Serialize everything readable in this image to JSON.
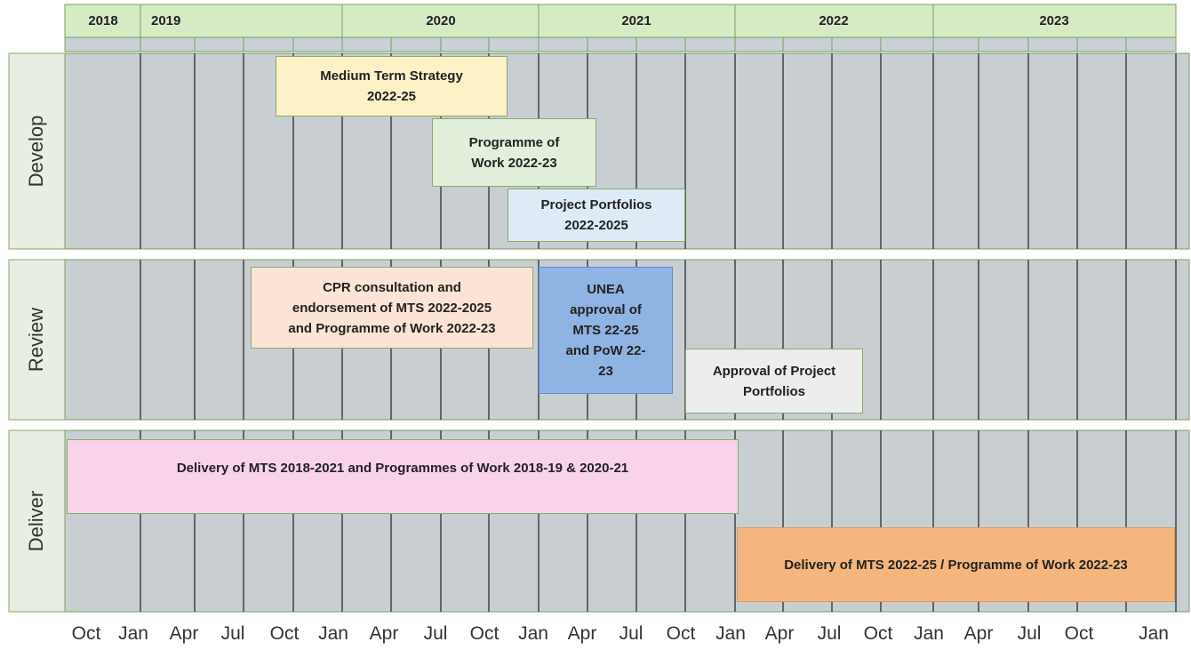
{
  "years": [
    "2018",
    "2019",
    "2020",
    "2021",
    "2022",
    "2023"
  ],
  "months": [
    "Oct",
    "Jan",
    "Apr",
    "Jul",
    "Oct",
    "Jan",
    "Apr",
    "Jul",
    "Oct",
    "Jan",
    "Apr",
    "Jul",
    "Oct",
    "Jan",
    "Apr",
    "Jul",
    "Oct",
    "Jan",
    "Apr",
    "Jul",
    "Oct",
    "Jan"
  ],
  "lanes": [
    "Develop",
    "Review",
    "Deliver"
  ],
  "tasks": [
    {
      "lines": [
        "Medium Term Strategy",
        "2022-25"
      ]
    },
    {
      "lines": [
        "Programme of",
        "Work 2022-23"
      ]
    },
    {
      "lines": [
        "Project Portfolios",
        "2022-2025"
      ]
    },
    {
      "lines": [
        "CPR consultation and",
        "endorsement of MTS 2022-2025",
        "and Programme of Work 2022-23"
      ]
    },
    {
      "lines": [
        "UNEA",
        "approval of",
        "MTS 22-25",
        "and PoW 22-",
        "23"
      ]
    },
    {
      "lines": [
        "Approval of Project",
        "Portfolios"
      ]
    },
    {
      "lines": [
        "Delivery of MTS 2018-2021 and Programmes of Work 2018-19 & 2020-21"
      ]
    },
    {
      "lines": [
        "Delivery of MTS 2022-25 / Programme of Work 2022-23"
      ]
    }
  ]
}
